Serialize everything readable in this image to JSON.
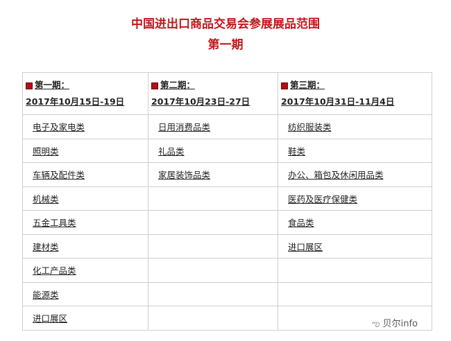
{
  "title": "中国进出口商品交易会参展展品范围",
  "subtitle": "第一期",
  "phases": [
    {
      "label": "第一期：",
      "dates": "2017年10月15日-19日",
      "items": [
        "电子及家电类",
        "照明类",
        "车辆及配件类",
        "机械类",
        "五金工具类",
        "建材类",
        "化工产品类",
        "能源类",
        "进口展区"
      ]
    },
    {
      "label": "第二期：",
      "dates": "2017年10月23日-27日",
      "items": [
        "日用消费品类",
        "礼品类",
        "家居装饰品类"
      ]
    },
    {
      "label": "第三期：",
      "dates": "2017年10月31日-11月4日",
      "items": [
        "纺织服装类",
        "鞋类",
        "办公、箱包及休闲用品类",
        "医药及医疗保健类",
        "食品类",
        "进口展区"
      ]
    }
  ],
  "watermark": "贝尔info",
  "colors": {
    "title": "#c3161c",
    "bullet": "#b01018"
  }
}
